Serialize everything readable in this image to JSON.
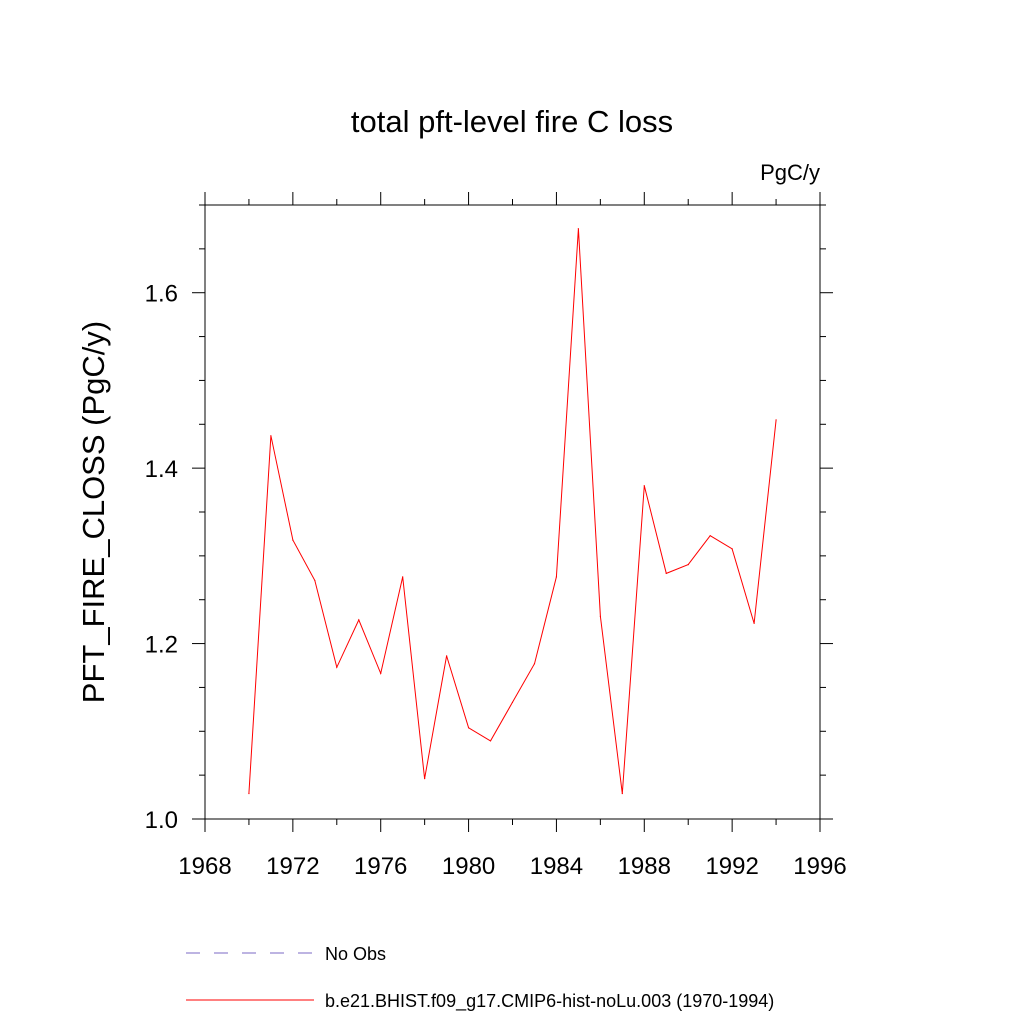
{
  "chart_data": {
    "type": "line",
    "title": "total pft-level fire C loss",
    "units_label": "PgC/y",
    "ylabel": "PFT_FIRE_CLOSS  (PgC/y)",
    "xlabel": "",
    "xlim": [
      1968,
      1996
    ],
    "ylim": [
      1.0,
      1.7
    ],
    "x_ticks": [
      1968,
      1972,
      1976,
      1980,
      1984,
      1988,
      1992,
      1996
    ],
    "y_ticks": [
      1.0,
      1.2,
      1.4,
      1.6
    ],
    "y_tick_labels": [
      "1.0",
      "1.2",
      "1.4",
      "1.6"
    ],
    "grid": false,
    "legend_position": "bottom",
    "series": [
      {
        "name": "b.e21.BHIST.f09_g17.CMIP6-hist-noLu.003 (1970-1994)",
        "color": "#ff0000",
        "style": "solid",
        "x": [
          1970,
          1971,
          1972,
          1973,
          1974,
          1975,
          1976,
          1977,
          1978,
          1979,
          1980,
          1981,
          1982,
          1983,
          1984,
          1985,
          1986,
          1987,
          1988,
          1989,
          1990,
          1991,
          1992,
          1993,
          1994
        ],
        "values": [
          1.029,
          1.437,
          1.318,
          1.272,
          1.173,
          1.227,
          1.166,
          1.276,
          1.046,
          1.186,
          1.104,
          1.089,
          1.133,
          1.177,
          1.276,
          1.673,
          1.231,
          1.029,
          1.38,
          1.28,
          1.29,
          1.323,
          1.308,
          1.223,
          1.455
        ]
      }
    ],
    "legend": [
      {
        "label": "No Obs",
        "color": "#7b68c4",
        "style": "dashed"
      },
      {
        "label": "b.e21.BHIST.f09_g17.CMIP6-hist-noLu.003 (1970-1994)",
        "color": "#ff0000",
        "style": "solid"
      }
    ]
  }
}
